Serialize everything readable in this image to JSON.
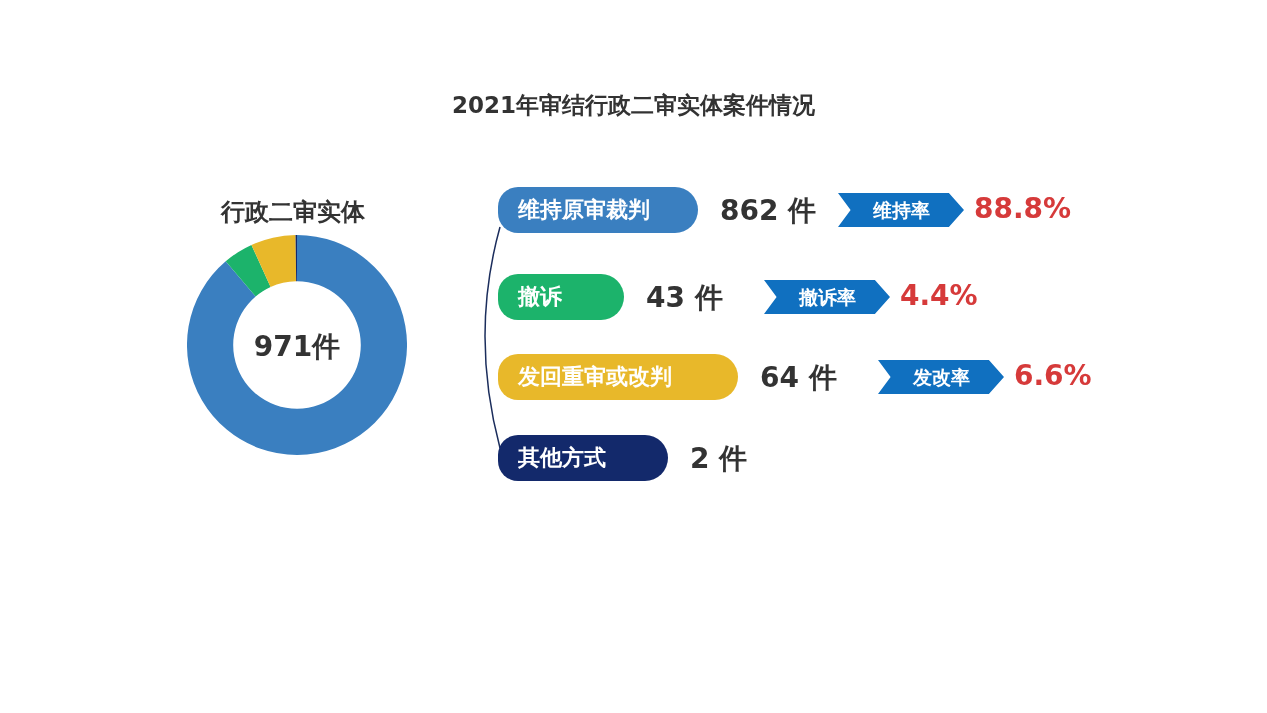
{
  "chart_data": {
    "type": "donut",
    "title": "2021年审结行政二审实体案件情况",
    "subtitle": "行政二审实体",
    "categories": [
      "维持原审裁判",
      "撤诉",
      "发回重审或改判",
      "其他方式"
    ],
    "values": [
      862,
      43,
      64,
      2
    ],
    "colors": [
      "#3a7fc0",
      "#1cb36b",
      "#e8b82a",
      "#13296b"
    ],
    "value_labels": [
      "862 件",
      "43 件",
      "64 件",
      "2 件"
    ],
    "legend": "right",
    "annotations": [
      "971件",
      "维持率",
      "88.8%",
      "撤诉率",
      "4.4%",
      "发改率",
      "6.6%"
    ]
  }
}
